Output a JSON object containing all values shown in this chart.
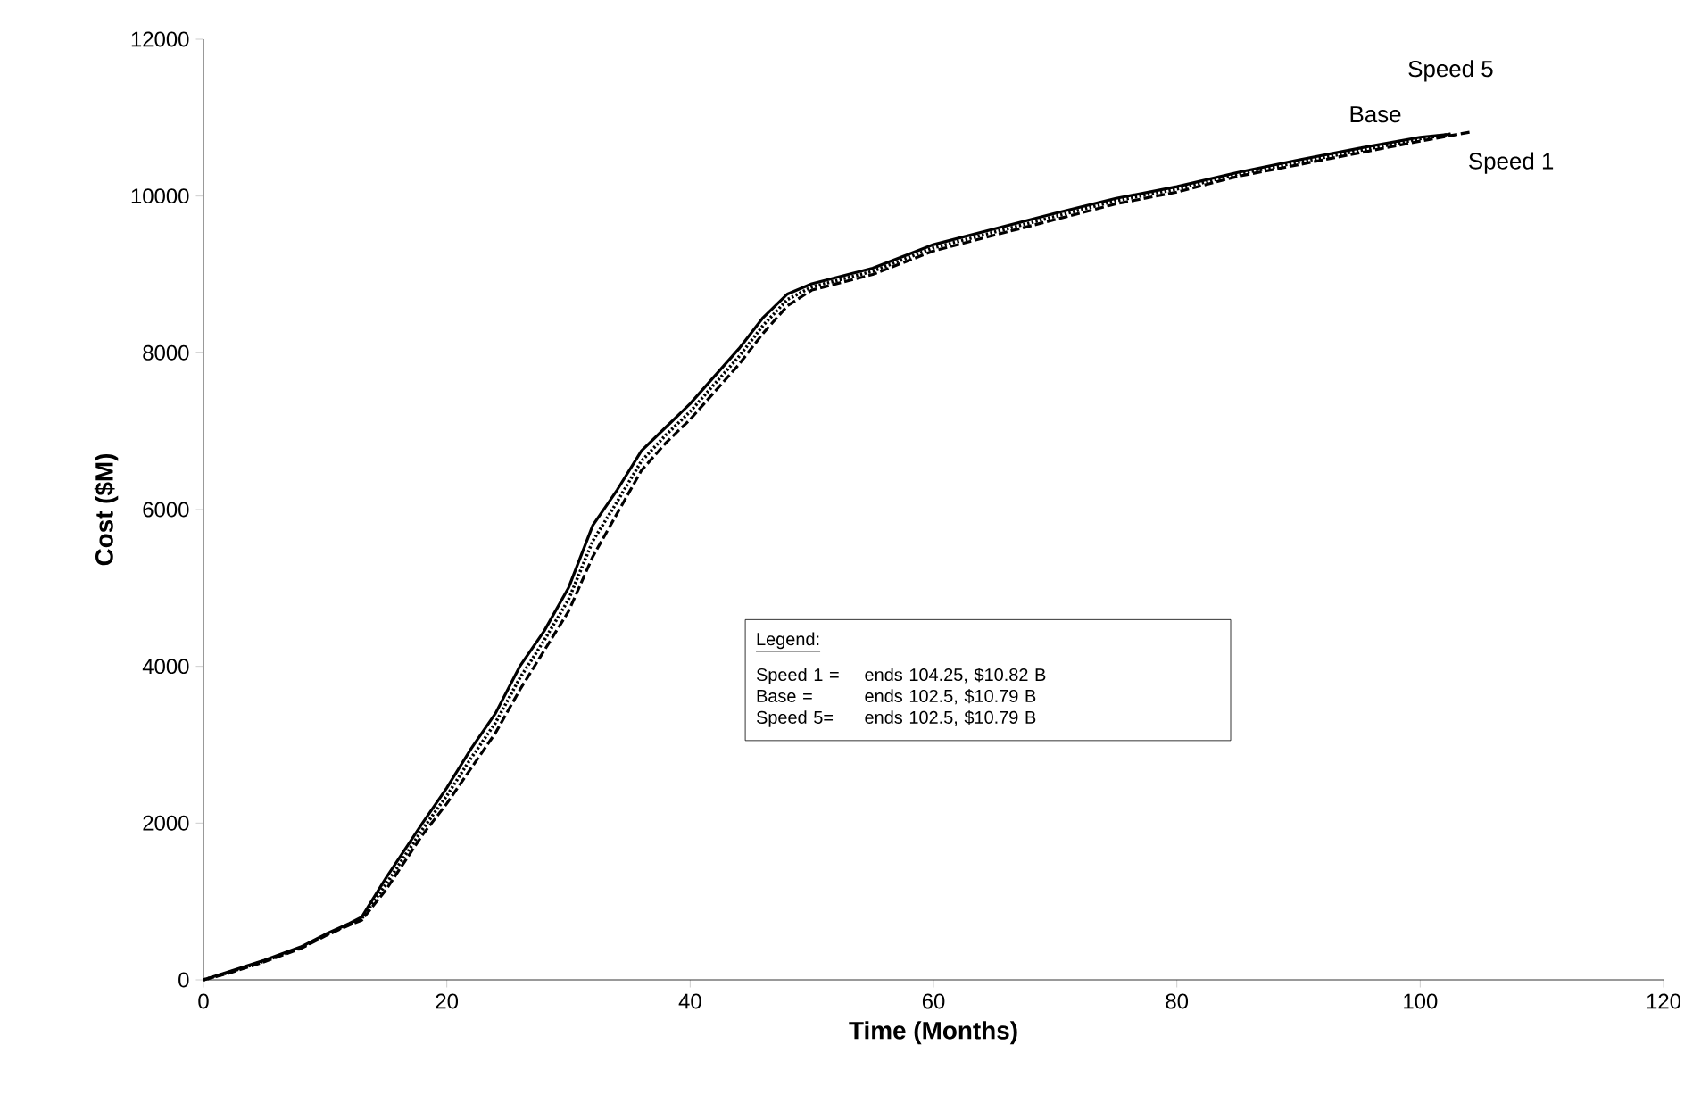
{
  "chart_data": {
    "type": "line",
    "xlabel": "Time (Months)",
    "ylabel": "Cost ($M)",
    "xlim": [
      0,
      120
    ],
    "xticks": [
      0,
      20,
      40,
      60,
      80,
      100,
      120
    ],
    "ylim": [
      0,
      12000
    ],
    "yticks": [
      0,
      2000,
      4000,
      6000,
      8000,
      10000,
      12000
    ],
    "grid": false,
    "legend": false,
    "marker": "none",
    "series": [
      {
        "name": "Speed 1",
        "color": "#000000",
        "line_style": "dashed",
        "x": [
          0,
          2,
          5,
          8,
          10,
          12,
          13,
          15,
          18,
          20,
          22,
          24,
          26,
          28,
          30,
          32,
          34,
          36,
          38,
          40,
          42,
          44,
          46,
          48,
          50,
          55,
          60,
          65,
          70,
          75,
          80,
          85,
          90,
          95,
          100,
          104.25
        ],
        "values": [
          0,
          80,
          230,
          400,
          560,
          700,
          760,
          1150,
          1850,
          2250,
          2700,
          3150,
          3700,
          4200,
          4700,
          5400,
          5950,
          6500,
          6850,
          7150,
          7500,
          7850,
          8250,
          8600,
          8800,
          9000,
          9300,
          9500,
          9700,
          9900,
          10050,
          10250,
          10400,
          10550,
          10700,
          10820
        ]
      },
      {
        "name": "Base",
        "color": "#000000",
        "line_style": "solid",
        "x": [
          0,
          2,
          5,
          8,
          10,
          12,
          13,
          15,
          18,
          20,
          22,
          24,
          26,
          28,
          30,
          32,
          34,
          36,
          38,
          40,
          42,
          44,
          46,
          48,
          50,
          55,
          60,
          65,
          70,
          75,
          80,
          85,
          90,
          95,
          100,
          102.5
        ],
        "values": [
          0,
          100,
          250,
          420,
          580,
          720,
          800,
          1300,
          2000,
          2450,
          2950,
          3400,
          4000,
          4450,
          5000,
          5800,
          6250,
          6750,
          7050,
          7350,
          7700,
          8050,
          8450,
          8750,
          8880,
          9080,
          9380,
          9580,
          9780,
          9970,
          10120,
          10300,
          10460,
          10610,
          10750,
          10790
        ]
      },
      {
        "name": "Speed 5",
        "color": "#000000",
        "line_style": "dotted",
        "x": [
          0,
          2,
          5,
          8,
          10,
          12,
          13,
          15,
          18,
          20,
          22,
          24,
          26,
          28,
          30,
          32,
          34,
          36,
          38,
          40,
          42,
          44,
          46,
          48,
          50,
          55,
          60,
          65,
          70,
          75,
          80,
          85,
          90,
          95,
          100,
          102.5
        ],
        "values": [
          0,
          90,
          240,
          410,
          570,
          710,
          780,
          1220,
          1920,
          2350,
          2830,
          3280,
          3850,
          4330,
          4850,
          5600,
          6100,
          6620,
          6950,
          7250,
          7600,
          7950,
          8350,
          8680,
          8840,
          9040,
          9340,
          9540,
          9740,
          9940,
          10090,
          10280,
          10430,
          10580,
          10730,
          10790
        ]
      }
    ],
    "annotations": [
      "Legend:",
      "Speed 1 =",
      "ends 104.25, $10.82 B",
      "Base =",
      "ends 102.5, $10.79 B",
      "Speed 5=",
      "ends 102.5, $10.79 B"
    ]
  }
}
